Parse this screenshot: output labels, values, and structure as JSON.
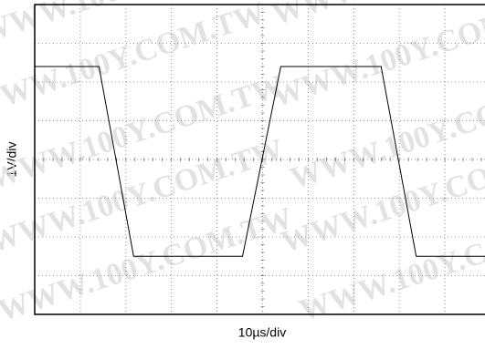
{
  "chart_data": {
    "type": "line",
    "xlabel": "10µs/div",
    "ylabel": "1V/div",
    "watermark": "WWW.100Y.COM.TW",
    "x": [
      -50,
      -35.9,
      -28.3,
      -4.4,
      4,
      26,
      33.7,
      50
    ],
    "series": [
      {
        "color": "#000000",
        "values": [
          2.4,
          2.4,
          -2.5,
          -2.5,
          2.4,
          2.4,
          -2.5,
          -2.5
        ]
      }
    ],
    "xlim": [
      -50,
      50
    ],
    "ylim": [
      -4,
      4
    ],
    "xticks": [
      -50,
      -40,
      -30,
      -20,
      -10,
      0,
      10,
      20,
      30,
      40,
      50
    ],
    "yticks": [
      -4,
      -3,
      -2,
      -1,
      0,
      1,
      2,
      3,
      4
    ],
    "grid": true
  }
}
